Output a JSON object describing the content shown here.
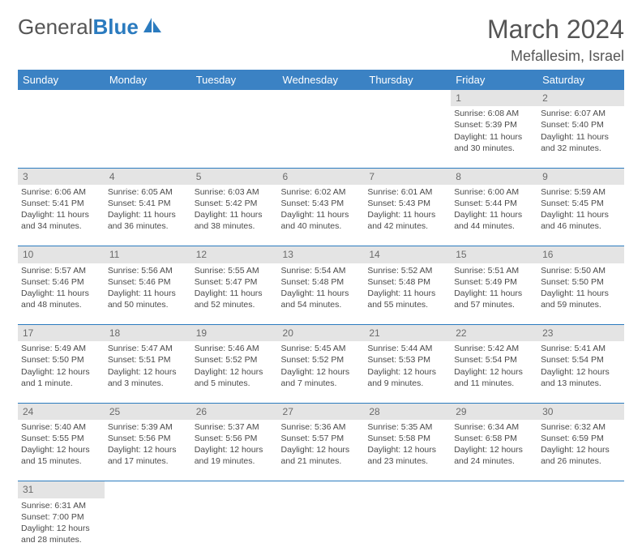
{
  "logo": {
    "word1": "General",
    "word2": "Blue",
    "icon_color": "#2b7bbf"
  },
  "title": "March 2024",
  "location": "Mefallesim, Israel",
  "colors": {
    "header_bg": "#3b82c4",
    "header_text": "#ffffff",
    "daynum_bg": "#e4e4e4",
    "daynum_text": "#6b6b6b",
    "cell_text": "#4a4a4a",
    "row_divider": "#2b7bbf"
  },
  "day_headers": [
    "Sunday",
    "Monday",
    "Tuesday",
    "Wednesday",
    "Thursday",
    "Friday",
    "Saturday"
  ],
  "weeks": [
    {
      "nums": [
        "",
        "",
        "",
        "",
        "",
        "1",
        "2"
      ],
      "cells": [
        null,
        null,
        null,
        null,
        null,
        {
          "sunrise": "Sunrise: 6:08 AM",
          "sunset": "Sunset: 5:39 PM",
          "daylight": "Daylight: 11 hours and 30 minutes."
        },
        {
          "sunrise": "Sunrise: 6:07 AM",
          "sunset": "Sunset: 5:40 PM",
          "daylight": "Daylight: 11 hours and 32 minutes."
        }
      ]
    },
    {
      "nums": [
        "3",
        "4",
        "5",
        "6",
        "7",
        "8",
        "9"
      ],
      "cells": [
        {
          "sunrise": "Sunrise: 6:06 AM",
          "sunset": "Sunset: 5:41 PM",
          "daylight": "Daylight: 11 hours and 34 minutes."
        },
        {
          "sunrise": "Sunrise: 6:05 AM",
          "sunset": "Sunset: 5:41 PM",
          "daylight": "Daylight: 11 hours and 36 minutes."
        },
        {
          "sunrise": "Sunrise: 6:03 AM",
          "sunset": "Sunset: 5:42 PM",
          "daylight": "Daylight: 11 hours and 38 minutes."
        },
        {
          "sunrise": "Sunrise: 6:02 AM",
          "sunset": "Sunset: 5:43 PM",
          "daylight": "Daylight: 11 hours and 40 minutes."
        },
        {
          "sunrise": "Sunrise: 6:01 AM",
          "sunset": "Sunset: 5:43 PM",
          "daylight": "Daylight: 11 hours and 42 minutes."
        },
        {
          "sunrise": "Sunrise: 6:00 AM",
          "sunset": "Sunset: 5:44 PM",
          "daylight": "Daylight: 11 hours and 44 minutes."
        },
        {
          "sunrise": "Sunrise: 5:59 AM",
          "sunset": "Sunset: 5:45 PM",
          "daylight": "Daylight: 11 hours and 46 minutes."
        }
      ]
    },
    {
      "nums": [
        "10",
        "11",
        "12",
        "13",
        "14",
        "15",
        "16"
      ],
      "cells": [
        {
          "sunrise": "Sunrise: 5:57 AM",
          "sunset": "Sunset: 5:46 PM",
          "daylight": "Daylight: 11 hours and 48 minutes."
        },
        {
          "sunrise": "Sunrise: 5:56 AM",
          "sunset": "Sunset: 5:46 PM",
          "daylight": "Daylight: 11 hours and 50 minutes."
        },
        {
          "sunrise": "Sunrise: 5:55 AM",
          "sunset": "Sunset: 5:47 PM",
          "daylight": "Daylight: 11 hours and 52 minutes."
        },
        {
          "sunrise": "Sunrise: 5:54 AM",
          "sunset": "Sunset: 5:48 PM",
          "daylight": "Daylight: 11 hours and 54 minutes."
        },
        {
          "sunrise": "Sunrise: 5:52 AM",
          "sunset": "Sunset: 5:48 PM",
          "daylight": "Daylight: 11 hours and 55 minutes."
        },
        {
          "sunrise": "Sunrise: 5:51 AM",
          "sunset": "Sunset: 5:49 PM",
          "daylight": "Daylight: 11 hours and 57 minutes."
        },
        {
          "sunrise": "Sunrise: 5:50 AM",
          "sunset": "Sunset: 5:50 PM",
          "daylight": "Daylight: 11 hours and 59 minutes."
        }
      ]
    },
    {
      "nums": [
        "17",
        "18",
        "19",
        "20",
        "21",
        "22",
        "23"
      ],
      "cells": [
        {
          "sunrise": "Sunrise: 5:49 AM",
          "sunset": "Sunset: 5:50 PM",
          "daylight": "Daylight: 12 hours and 1 minute."
        },
        {
          "sunrise": "Sunrise: 5:47 AM",
          "sunset": "Sunset: 5:51 PM",
          "daylight": "Daylight: 12 hours and 3 minutes."
        },
        {
          "sunrise": "Sunrise: 5:46 AM",
          "sunset": "Sunset: 5:52 PM",
          "daylight": "Daylight: 12 hours and 5 minutes."
        },
        {
          "sunrise": "Sunrise: 5:45 AM",
          "sunset": "Sunset: 5:52 PM",
          "daylight": "Daylight: 12 hours and 7 minutes."
        },
        {
          "sunrise": "Sunrise: 5:44 AM",
          "sunset": "Sunset: 5:53 PM",
          "daylight": "Daylight: 12 hours and 9 minutes."
        },
        {
          "sunrise": "Sunrise: 5:42 AM",
          "sunset": "Sunset: 5:54 PM",
          "daylight": "Daylight: 12 hours and 11 minutes."
        },
        {
          "sunrise": "Sunrise: 5:41 AM",
          "sunset": "Sunset: 5:54 PM",
          "daylight": "Daylight: 12 hours and 13 minutes."
        }
      ]
    },
    {
      "nums": [
        "24",
        "25",
        "26",
        "27",
        "28",
        "29",
        "30"
      ],
      "cells": [
        {
          "sunrise": "Sunrise: 5:40 AM",
          "sunset": "Sunset: 5:55 PM",
          "daylight": "Daylight: 12 hours and 15 minutes."
        },
        {
          "sunrise": "Sunrise: 5:39 AM",
          "sunset": "Sunset: 5:56 PM",
          "daylight": "Daylight: 12 hours and 17 minutes."
        },
        {
          "sunrise": "Sunrise: 5:37 AM",
          "sunset": "Sunset: 5:56 PM",
          "daylight": "Daylight: 12 hours and 19 minutes."
        },
        {
          "sunrise": "Sunrise: 5:36 AM",
          "sunset": "Sunset: 5:57 PM",
          "daylight": "Daylight: 12 hours and 21 minutes."
        },
        {
          "sunrise": "Sunrise: 5:35 AM",
          "sunset": "Sunset: 5:58 PM",
          "daylight": "Daylight: 12 hours and 23 minutes."
        },
        {
          "sunrise": "Sunrise: 6:34 AM",
          "sunset": "Sunset: 6:58 PM",
          "daylight": "Daylight: 12 hours and 24 minutes."
        },
        {
          "sunrise": "Sunrise: 6:32 AM",
          "sunset": "Sunset: 6:59 PM",
          "daylight": "Daylight: 12 hours and 26 minutes."
        }
      ]
    },
    {
      "nums": [
        "31",
        "",
        "",
        "",
        "",
        "",
        ""
      ],
      "cells": [
        {
          "sunrise": "Sunrise: 6:31 AM",
          "sunset": "Sunset: 7:00 PM",
          "daylight": "Daylight: 12 hours and 28 minutes."
        },
        null,
        null,
        null,
        null,
        null,
        null
      ]
    }
  ]
}
